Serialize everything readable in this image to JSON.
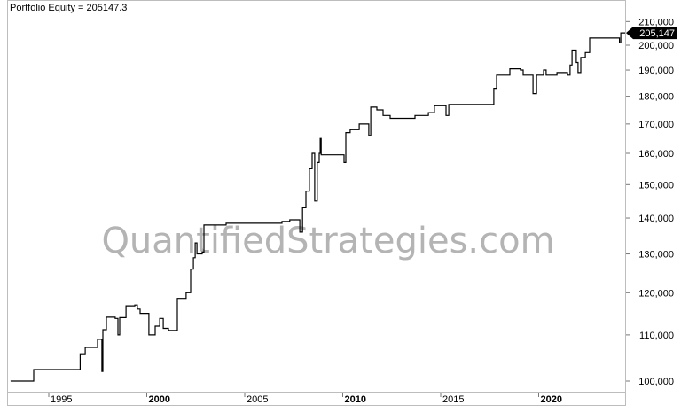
{
  "chart_data": {
    "type": "line",
    "title": "Portfolio Equity = 205147.3",
    "xlabel": "",
    "ylabel": "",
    "y_scale": "log",
    "grid": false,
    "xlim": [
      1992.9,
      2024.45
    ],
    "ylim": [
      97000,
      215000
    ],
    "x_ticks": [
      {
        "label": "1995",
        "value": 1995,
        "bold": false
      },
      {
        "label": "2000",
        "value": 2000,
        "bold": true
      },
      {
        "label": "2005",
        "value": 2005,
        "bold": false
      },
      {
        "label": "2010",
        "value": 2010,
        "bold": true
      },
      {
        "label": "2015",
        "value": 2015,
        "bold": false
      },
      {
        "label": "2020",
        "value": 2020,
        "bold": true
      }
    ],
    "y_ticks": [
      {
        "label": "100,000",
        "value": 100000
      },
      {
        "label": "110,000",
        "value": 110000
      },
      {
        "label": "120,000",
        "value": 120000
      },
      {
        "label": "130,000",
        "value": 130000
      },
      {
        "label": "140,000",
        "value": 140000
      },
      {
        "label": "150,000",
        "value": 150000
      },
      {
        "label": "160,000",
        "value": 160000
      },
      {
        "label": "170,000",
        "value": 170000
      },
      {
        "label": "180,000",
        "value": 180000
      },
      {
        "label": "190,000",
        "value": 190000
      },
      {
        "label": "200,000",
        "value": 200000
      },
      {
        "label": "210,000",
        "value": 210000
      }
    ],
    "last_value_label": "205,147",
    "last_value": 205147.3,
    "watermark": "QuantifiedStrategies.com",
    "series": [
      {
        "color": "#000000",
        "step": true,
        "points": [
          [
            1993.05,
            100000
          ],
          [
            1994.14,
            100000
          ],
          [
            1994.23,
            102400
          ],
          [
            1996.49,
            102400
          ],
          [
            1996.6,
            105800
          ],
          [
            1996.86,
            107200
          ],
          [
            1997.49,
            109000
          ],
          [
            1997.71,
            102000
          ],
          [
            1997.76,
            111200
          ],
          [
            1997.94,
            114100
          ],
          [
            1998.39,
            113800
          ],
          [
            1998.53,
            110000
          ],
          [
            1998.62,
            114000
          ],
          [
            1998.94,
            116800
          ],
          [
            1999.39,
            117000
          ],
          [
            1999.52,
            116000
          ],
          [
            1999.66,
            115000
          ],
          [
            2000.11,
            110000
          ],
          [
            2000.43,
            112000
          ],
          [
            2000.66,
            113800
          ],
          [
            2000.84,
            111500
          ],
          [
            2001.11,
            111000
          ],
          [
            2001.56,
            118600
          ],
          [
            2002.01,
            120000
          ],
          [
            2002.24,
            126000
          ],
          [
            2002.38,
            129000
          ],
          [
            2002.47,
            133000
          ],
          [
            2002.56,
            130000
          ],
          [
            2002.83,
            130500
          ],
          [
            2002.92,
            138000
          ],
          [
            2004.05,
            138500
          ],
          [
            2006.9,
            139000
          ],
          [
            2007.3,
            139500
          ],
          [
            2007.81,
            136000
          ],
          [
            2007.95,
            143000
          ],
          [
            2008.12,
            148000
          ],
          [
            2008.3,
            155000
          ],
          [
            2008.44,
            160000
          ],
          [
            2008.57,
            145000
          ],
          [
            2008.7,
            157000
          ],
          [
            2008.8,
            160000
          ],
          [
            2008.85,
            165000
          ],
          [
            2008.9,
            159500
          ],
          [
            2010.07,
            157000
          ],
          [
            2010.16,
            167000
          ],
          [
            2010.38,
            168000
          ],
          [
            2010.84,
            170000
          ],
          [
            2011.33,
            166000
          ],
          [
            2011.43,
            176000
          ],
          [
            2011.74,
            175000
          ],
          [
            2012.06,
            173000
          ],
          [
            2012.42,
            172000
          ],
          [
            2013.33,
            172000
          ],
          [
            2013.69,
            173000
          ],
          [
            2014.37,
            174000
          ],
          [
            2014.68,
            176500
          ],
          [
            2015.27,
            173000
          ],
          [
            2015.41,
            177000
          ],
          [
            2017.62,
            177000
          ],
          [
            2017.71,
            183000
          ],
          [
            2017.85,
            188000
          ],
          [
            2018.53,
            190500
          ],
          [
            2019.07,
            190000
          ],
          [
            2019.21,
            188000
          ],
          [
            2019.71,
            181000
          ],
          [
            2019.89,
            188000
          ],
          [
            2020.25,
            190000
          ],
          [
            2020.38,
            188000
          ],
          [
            2020.93,
            189000
          ],
          [
            2021.47,
            188000
          ],
          [
            2021.6,
            192000
          ],
          [
            2021.7,
            198000
          ],
          [
            2021.92,
            193000
          ],
          [
            2022.01,
            189000
          ],
          [
            2022.15,
            195000
          ],
          [
            2022.38,
            197000
          ],
          [
            2022.6,
            203000
          ],
          [
            2024.05,
            203000
          ],
          [
            2024.12,
            201000
          ],
          [
            2024.19,
            205147.3
          ],
          [
            2024.41,
            205147.3
          ]
        ]
      }
    ]
  }
}
